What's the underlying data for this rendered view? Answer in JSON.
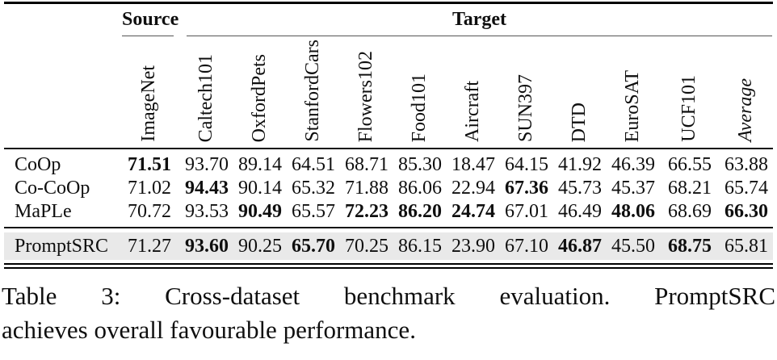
{
  "table": {
    "source_group_label": "Source",
    "target_group_label": "Target",
    "columns": [
      "ImageNet",
      "Caltech101",
      "OxfordPets",
      "StanfordCars",
      "Flowers102",
      "Food101",
      "Aircraft",
      "SUN397",
      "DTD",
      "EuroSAT",
      "UCF101",
      "Average"
    ],
    "rows": [
      {
        "method": "CoOp",
        "values": [
          "71.51",
          "93.70",
          "89.14",
          "64.51",
          "68.71",
          "85.30",
          "18.47",
          "64.15",
          "41.92",
          "46.39",
          "66.55",
          "63.88"
        ],
        "bold_indices": [
          0
        ],
        "highlighted": false
      },
      {
        "method": "Co-CoOp",
        "values": [
          "71.02",
          "94.43",
          "90.14",
          "65.32",
          "71.88",
          "86.06",
          "22.94",
          "67.36",
          "45.73",
          "45.37",
          "68.21",
          "65.74"
        ],
        "bold_indices": [
          1,
          7
        ],
        "highlighted": false
      },
      {
        "method": "MaPLe",
        "values": [
          "70.72",
          "93.53",
          "90.49",
          "65.57",
          "72.23",
          "86.20",
          "24.74",
          "67.01",
          "46.49",
          "48.06",
          "68.69",
          "66.30"
        ],
        "bold_indices": [
          2,
          4,
          5,
          6,
          9,
          11
        ],
        "highlighted": false
      },
      {
        "method": "PromptSRC",
        "values": [
          "71.27",
          "93.60",
          "90.25",
          "65.70",
          "70.25",
          "86.15",
          "23.90",
          "67.10",
          "46.87",
          "45.50",
          "68.75",
          "65.81"
        ],
        "bold_indices": [
          1,
          3,
          8,
          10
        ],
        "highlighted": true
      }
    ],
    "highlight_color": "#e9e9e9"
  },
  "caption": {
    "line1": "Table 3: Cross-dataset benchmark evaluation. PromptSRC",
    "line2": "achieves overall favourable performance."
  }
}
